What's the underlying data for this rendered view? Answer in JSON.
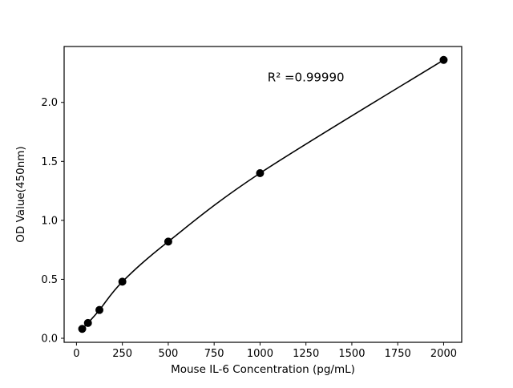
{
  "chart_data": {
    "type": "scatter",
    "title": "",
    "xlabel": "Mouse IL-6 Concentration (pg/mL)",
    "ylabel": "OD Value(450nm)",
    "x": [
      31.25,
      62.5,
      125,
      250,
      500,
      1000,
      2000
    ],
    "y": [
      0.08,
      0.13,
      0.24,
      0.48,
      0.82,
      1.4,
      2.36
    ],
    "has_fit_curve": true,
    "annotation": "R² =0.99990",
    "annotation_xy": [
      1250,
      2.18
    ],
    "xticks": [
      0,
      250,
      500,
      750,
      1000,
      1250,
      1500,
      1750,
      2000
    ],
    "yticks": [
      0.0,
      0.5,
      1.0,
      1.5,
      2.0
    ],
    "xlim": [
      -67.2,
      2098.4
    ],
    "ylim": [
      -0.034,
      2.474
    ],
    "grid": false,
    "legend": null,
    "marker_color": "#000000",
    "line_color": "#000000",
    "background_color": "#ffffff"
  }
}
